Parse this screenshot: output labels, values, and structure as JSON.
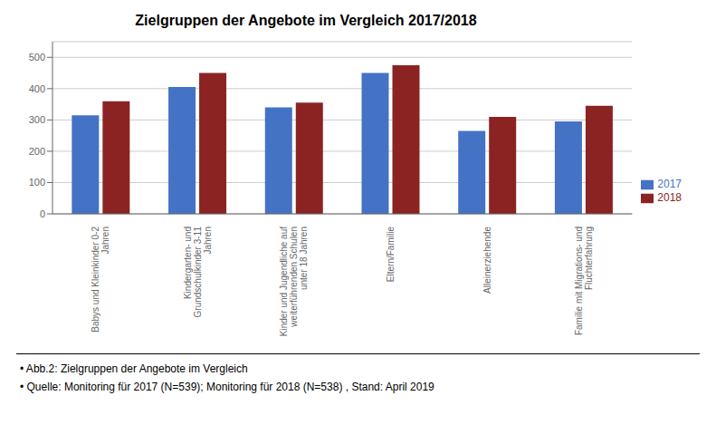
{
  "chart_data": {
    "type": "bar",
    "title": "Zielgruppen der Angebote im Vergleich 2017/2018",
    "categories": [
      "Babys und Kleinkinder 0-2\nJahren",
      "Kindergarten- und\nGrundschulkinder 3-11\nJahren",
      "Kinder und Jugendliche auf\nweiterführenden Schulen\nunter 18 Jahren",
      "Eltern/Familie",
      "Alleinerziehende",
      "Familie mit Migrations- und\nFluchterfahrung"
    ],
    "series": [
      {
        "name": "2017",
        "color": "#4472C4",
        "values": [
          315,
          405,
          340,
          450,
          265,
          295
        ]
      },
      {
        "name": "2018",
        "color": "#8B2323",
        "values": [
          360,
          450,
          355,
          475,
          310,
          345
        ]
      }
    ],
    "ylim": [
      0,
      550
    ],
    "yticks": [
      0,
      100,
      200,
      300,
      400,
      500
    ],
    "grid": true,
    "legend": "right",
    "annotations": [
      "• Abb.2: Zielgruppen der Angebote im Vergleich",
      "• Quelle: Monitoring für 2017 (N=539); Monitoring für 2018 (N=538) , Stand: April 2019"
    ]
  }
}
